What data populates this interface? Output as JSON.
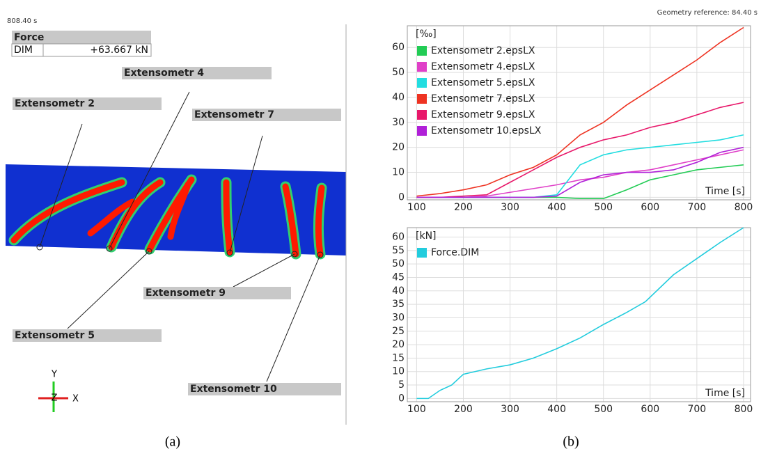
{
  "viewer": {
    "time": "808.40 s",
    "geometry_reference": "Geometry reference: 84.40 s",
    "force_box": {
      "title": "Force",
      "name": "DIM",
      "value": "+63.667 kN"
    },
    "extensometers": [
      "Extensometr 4",
      "Extensometr 2",
      "Extensometr 7",
      "Extensometr 9",
      "Extensometr 5",
      "Extensometr 10"
    ],
    "axes": [
      "Y",
      "Z",
      "X"
    ]
  },
  "captions": [
    "(a)",
    "(b)"
  ],
  "chart_data": [
    {
      "type": "line",
      "ylabel": "[‰]",
      "xlabel": "Time [s]",
      "x": [
        100,
        150,
        200,
        250,
        300,
        350,
        400,
        450,
        500,
        550,
        600,
        650,
        700,
        750,
        800
      ],
      "xlim": [
        80,
        815
      ],
      "xticks": [
        100,
        200,
        300,
        400,
        500,
        600,
        700,
        800
      ],
      "ylim": [
        -1,
        68.7
      ],
      "yticks": [
        0,
        10,
        20,
        30,
        40,
        50,
        60
      ],
      "grid": true,
      "legend": "upper left",
      "series": [
        {
          "name": "Extensometr 2.epsLX",
          "color": "#22cc55",
          "values": [
            0,
            0,
            0,
            0,
            0,
            0,
            0,
            -0.5,
            -0.5,
            3,
            7,
            9,
            11,
            12,
            13
          ]
        },
        {
          "name": "Extensometr 4.epsLX",
          "color": "#e040c8",
          "values": [
            0,
            0,
            0,
            0.5,
            2,
            3.5,
            5,
            7,
            8,
            10,
            11,
            13,
            15,
            17,
            19
          ]
        },
        {
          "name": "Extensometr 5.epsLX",
          "color": "#22dde0",
          "values": [
            0,
            0,
            0,
            0,
            0,
            0,
            1,
            13,
            17,
            19,
            20,
            21,
            22,
            23,
            25
          ]
        },
        {
          "name": "Extensometr 7.epsLX",
          "color": "#ee3322",
          "values": [
            0.5,
            1.5,
            3,
            5,
            9,
            12,
            17,
            25,
            30,
            37,
            43,
            49,
            55,
            62,
            68
          ]
        },
        {
          "name": "Extensometr 9.epsLX",
          "color": "#e8186a",
          "values": [
            0,
            0,
            0.5,
            1,
            6,
            11,
            16,
            20,
            23,
            25,
            28,
            30,
            33,
            36,
            38
          ]
        },
        {
          "name": "Extensometr 10.epsLX",
          "color": "#b020d8",
          "values": [
            0,
            0,
            0,
            0,
            0,
            0,
            0.5,
            6,
            9,
            10,
            10,
            11,
            14,
            18,
            20
          ]
        }
      ]
    },
    {
      "type": "line",
      "ylabel": "[kN]",
      "xlabel": "Time [s]",
      "x": [
        100,
        125,
        150,
        175,
        200,
        225,
        250,
        300,
        350,
        400,
        450,
        500,
        550,
        590,
        650,
        700,
        750,
        800
      ],
      "xlim": [
        80,
        815
      ],
      "xticks": [
        100,
        200,
        300,
        400,
        500,
        600,
        700,
        800
      ],
      "ylim": [
        -1.2,
        63.5
      ],
      "yticks": [
        0,
        5,
        10,
        15,
        20,
        25,
        30,
        35,
        40,
        45,
        50,
        55,
        60
      ],
      "grid": true,
      "legend": "upper left",
      "series": [
        {
          "name": "Force.DIM",
          "color": "#22ccdd",
          "values": [
            0,
            0,
            3,
            5,
            9,
            10,
            11,
            12.5,
            15,
            18.5,
            22.5,
            27.5,
            32,
            36,
            46,
            52,
            58,
            63.5
          ]
        }
      ]
    }
  ]
}
